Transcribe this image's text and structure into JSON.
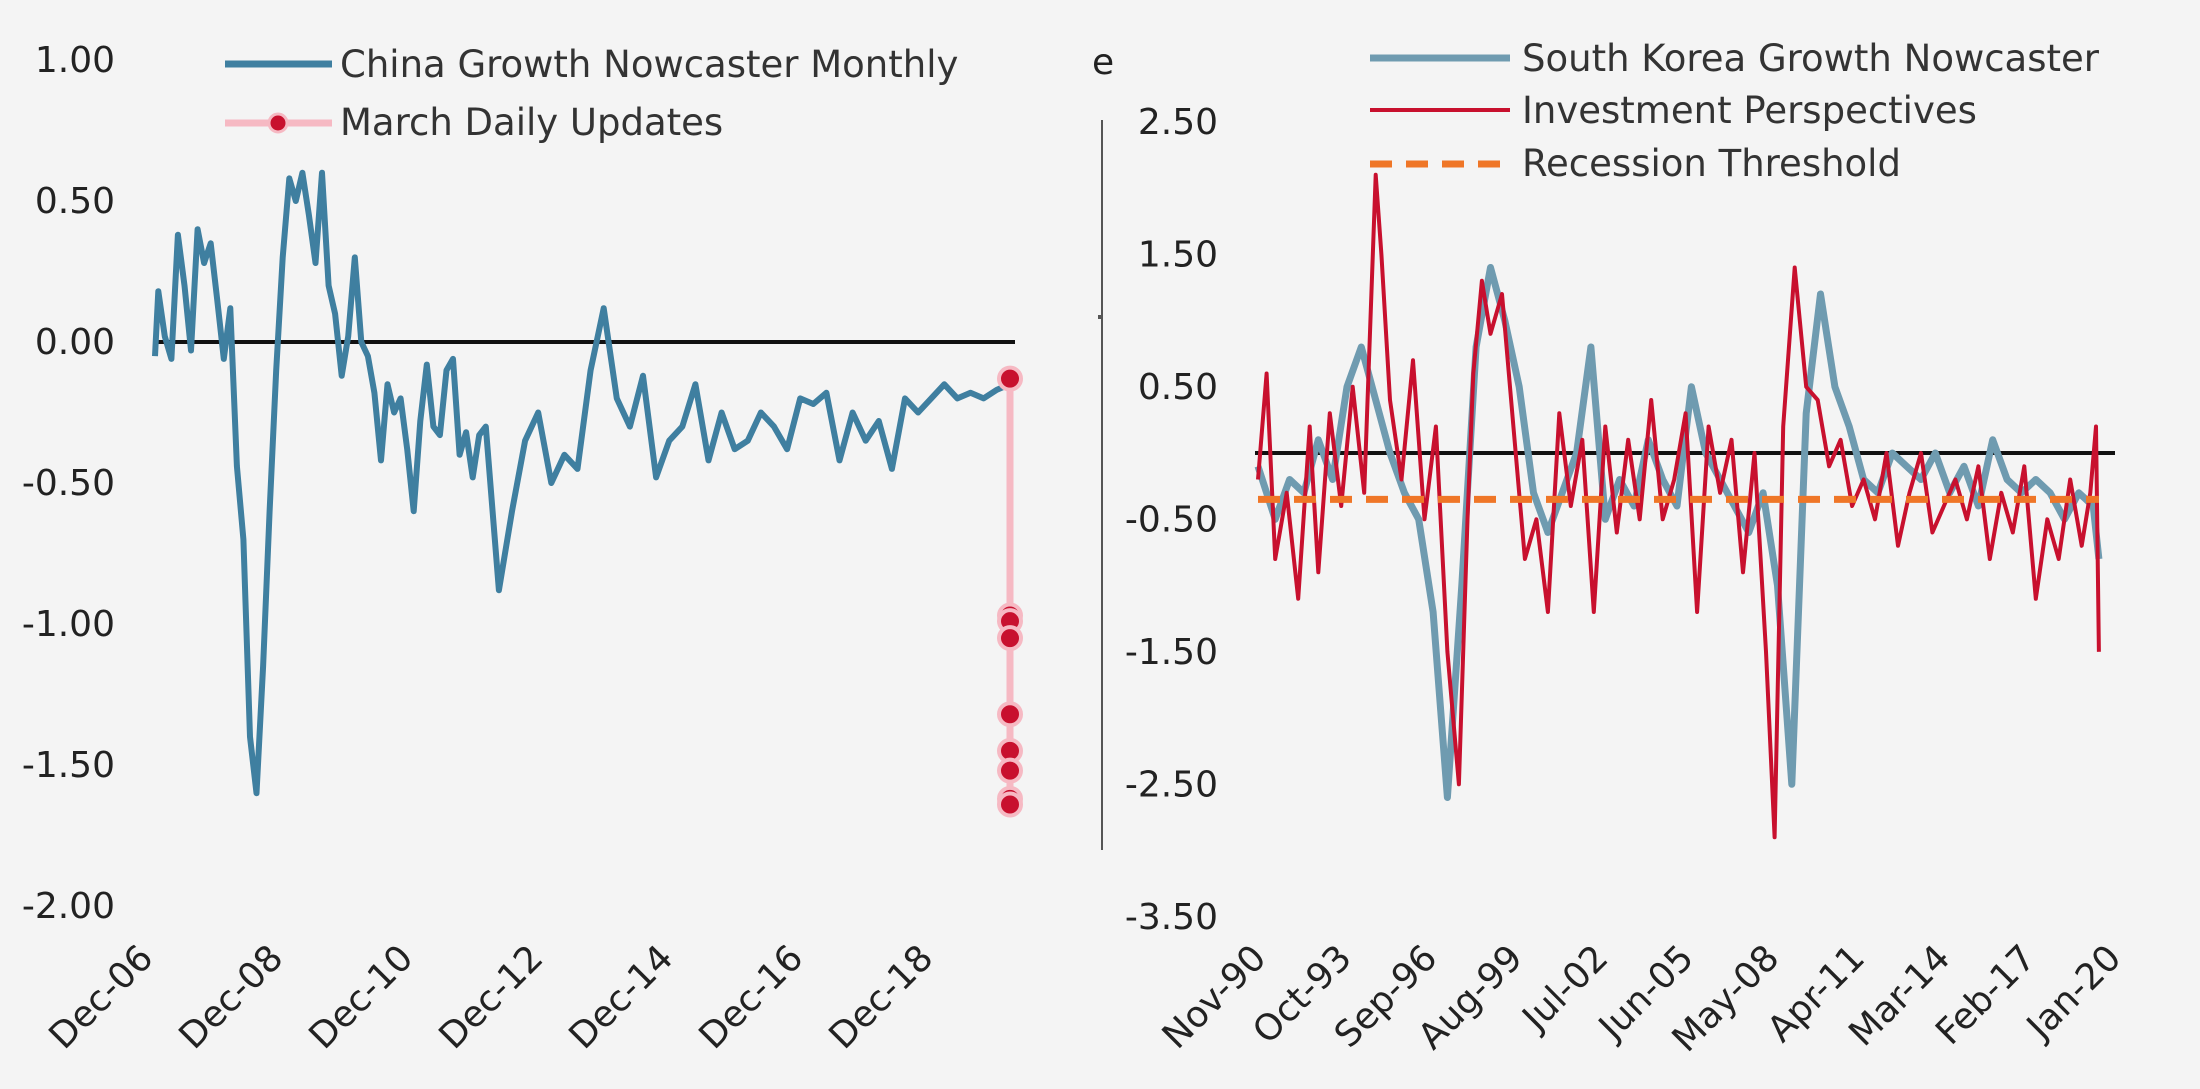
{
  "chart_data": [
    {
      "type": "line",
      "title": "",
      "xlabel": "",
      "ylabel": "",
      "ylim": [
        -2.0,
        1.0
      ],
      "y_ticks": [
        "1.00",
        "0.50",
        "0.00",
        "-0.50",
        "-1.00",
        "-1.50",
        "-2.00"
      ],
      "x_ticks": [
        "Dec-06",
        "Dec-08",
        "Dec-10",
        "Dec-12",
        "Dec-14",
        "Dec-16",
        "Dec-18"
      ],
      "legend_position": "top",
      "reference_line": 0.0,
      "series": [
        {
          "name": "China Growth Nowcaster Monthly",
          "color": "#3f7fa0",
          "x": [
            2006.95,
            2007.0,
            2007.1,
            2007.2,
            2007.3,
            2007.4,
            2007.5,
            2007.6,
            2007.7,
            2007.8,
            2007.9,
            2008.0,
            2008.1,
            2008.2,
            2008.3,
            2008.4,
            2008.5,
            2008.6,
            2008.7,
            2008.8,
            2008.9,
            2009.0,
            2009.1,
            2009.2,
            2009.3,
            2009.4,
            2009.5,
            2009.6,
            2009.7,
            2009.8,
            2009.9,
            2010.0,
            2010.1,
            2010.2,
            2010.3,
            2010.4,
            2010.5,
            2010.6,
            2010.7,
            2010.8,
            2010.9,
            2011.0,
            2011.1,
            2011.2,
            2011.3,
            2011.4,
            2011.5,
            2011.6,
            2011.7,
            2011.8,
            2011.9,
            2012.0,
            2012.2,
            2012.4,
            2012.6,
            2012.8,
            2013.0,
            2013.2,
            2013.4,
            2013.6,
            2013.8,
            2014.0,
            2014.2,
            2014.4,
            2014.6,
            2014.8,
            2015.0,
            2015.2,
            2015.4,
            2015.6,
            2015.8,
            2016.0,
            2016.2,
            2016.4,
            2016.6,
            2016.8,
            2017.0,
            2017.2,
            2017.4,
            2017.6,
            2017.8,
            2018.0,
            2018.2,
            2018.4,
            2018.6,
            2018.8,
            2019.0,
            2019.2,
            2019.4,
            2019.6,
            2019.8,
            2020.0,
            2020.1
          ],
          "values": [
            -0.05,
            0.18,
            0.02,
            -0.06,
            0.38,
            0.2,
            -0.03,
            0.4,
            0.28,
            0.35,
            0.15,
            -0.06,
            0.12,
            -0.44,
            -0.7,
            -1.4,
            -1.6,
            -1.15,
            -0.6,
            -0.1,
            0.3,
            0.58,
            0.5,
            0.6,
            0.45,
            0.28,
            0.6,
            0.2,
            0.1,
            -0.12,
            0.02,
            0.3,
            0.0,
            -0.05,
            -0.18,
            -0.42,
            -0.15,
            -0.25,
            -0.2,
            -0.38,
            -0.6,
            -0.28,
            -0.08,
            -0.3,
            -0.33,
            -0.1,
            -0.06,
            -0.4,
            -0.32,
            -0.48,
            -0.33,
            -0.3,
            -0.88,
            -0.6,
            -0.35,
            -0.25,
            -0.5,
            -0.4,
            -0.45,
            -0.1,
            0.12,
            -0.2,
            -0.3,
            -0.12,
            -0.48,
            -0.35,
            -0.3,
            -0.15,
            -0.42,
            -0.25,
            -0.38,
            -0.35,
            -0.25,
            -0.3,
            -0.38,
            -0.2,
            -0.22,
            -0.18,
            -0.42,
            -0.25,
            -0.35,
            -0.28,
            -0.45,
            -0.2,
            -0.25,
            -0.2,
            -0.15,
            -0.2,
            -0.18,
            -0.2,
            -0.17,
            -0.15,
            -0.13
          ]
        },
        {
          "name": "March Daily Updates",
          "color": "#c8102e",
          "line_color": "#f6b9c3",
          "x": [
            2020.15,
            2020.15,
            2020.15,
            2020.15,
            2020.15,
            2020.15,
            2020.15,
            2020.15,
            2020.15
          ],
          "values": [
            -0.13,
            -0.97,
            -0.99,
            -1.05,
            -1.32,
            -1.45,
            -1.52,
            -1.62,
            -1.64
          ]
        }
      ]
    },
    {
      "type": "line",
      "title": "",
      "xlabel": "",
      "ylabel": "",
      "ylim": [
        -3.5,
        2.5
      ],
      "y_ticks": [
        "2.50",
        "1.50",
        "0.50",
        "-0.50",
        "-1.50",
        "-2.50",
        "-3.50"
      ],
      "x_ticks": [
        "Nov-90",
        "Oct-93",
        "Sep-96",
        "Aug-99",
        "Jul-02",
        "Jun-05",
        "May-08",
        "Apr-11",
        "Mar-14",
        "Feb-17",
        "Jan-20"
      ],
      "legend_position": "top",
      "reference_line": 0.0,
      "series": [
        {
          "name": "South Korea Growth Nowcaster",
          "color": "#6f9bb0",
          "x": [
            1990.9,
            1991.5,
            1992.0,
            1992.5,
            1993.0,
            1993.5,
            1994.0,
            1994.5,
            1995.0,
            1995.5,
            1996.0,
            1996.5,
            1997.0,
            1997.5,
            1998.0,
            1998.5,
            1999.0,
            1999.5,
            2000.0,
            2000.5,
            2001.0,
            2001.5,
            2002.0,
            2002.5,
            2003.0,
            2003.5,
            2004.0,
            2004.5,
            2005.0,
            2005.5,
            2006.0,
            2006.5,
            2007.0,
            2007.5,
            2008.0,
            2008.5,
            2009.0,
            2009.5,
            2010.0,
            2010.5,
            2011.0,
            2011.5,
            2012.0,
            2012.5,
            2013.0,
            2013.5,
            2014.0,
            2014.5,
            2015.0,
            2015.5,
            2016.0,
            2016.5,
            2017.0,
            2017.5,
            2018.0,
            2018.5,
            2019.0,
            2019.5,
            2020.0,
            2020.2
          ],
          "values": [
            -0.1,
            -0.5,
            -0.2,
            -0.3,
            0.1,
            -0.2,
            0.5,
            0.8,
            0.4,
            0.0,
            -0.3,
            -0.5,
            -1.2,
            -2.6,
            -1.0,
            0.8,
            1.4,
            1.0,
            0.5,
            -0.3,
            -0.6,
            -0.3,
            0.0,
            0.8,
            -0.5,
            -0.2,
            -0.4,
            0.1,
            -0.2,
            -0.4,
            0.5,
            0.0,
            -0.2,
            -0.4,
            -0.6,
            -0.3,
            -1.0,
            -2.5,
            0.3,
            1.2,
            0.5,
            0.2,
            -0.2,
            -0.3,
            0.0,
            -0.1,
            -0.2,
            0.0,
            -0.3,
            -0.1,
            -0.4,
            0.1,
            -0.2,
            -0.3,
            -0.2,
            -0.3,
            -0.5,
            -0.3,
            -0.4,
            -0.8
          ]
        },
        {
          "name": "Investment Perspectives",
          "color": "#c8102e",
          "x": [
            1990.9,
            1991.2,
            1991.5,
            1991.9,
            1992.3,
            1992.7,
            1993.0,
            1993.4,
            1993.8,
            1994.2,
            1994.6,
            1995.0,
            1995.2,
            1995.5,
            1995.9,
            1996.3,
            1996.7,
            1997.1,
            1997.5,
            1997.9,
            1998.2,
            1998.4,
            1998.7,
            1999.0,
            1999.4,
            1999.8,
            2000.2,
            2000.6,
            2001.0,
            2001.4,
            2001.8,
            2002.2,
            2002.6,
            2003.0,
            2003.4,
            2003.8,
            2004.2,
            2004.6,
            2005.0,
            2005.4,
            2005.8,
            2006.2,
            2006.6,
            2007.0,
            2007.4,
            2007.8,
            2008.2,
            2008.6,
            2008.9,
            2009.2,
            2009.6,
            2010.0,
            2010.4,
            2010.8,
            2011.2,
            2011.6,
            2012.0,
            2012.4,
            2012.8,
            2013.2,
            2013.6,
            2014.0,
            2014.4,
            2014.8,
            2015.2,
            2015.6,
            2016.0,
            2016.4,
            2016.8,
            2017.2,
            2017.6,
            2018.0,
            2018.4,
            2018.8,
            2019.2,
            2019.6,
            2019.9,
            2020.1,
            2020.2
          ],
          "values": [
            -0.2,
            0.6,
            -0.8,
            -0.3,
            -1.1,
            0.2,
            -0.9,
            0.3,
            -0.4,
            0.5,
            -0.3,
            2.1,
            1.5,
            0.4,
            -0.2,
            0.7,
            -0.5,
            0.2,
            -1.5,
            -2.5,
            -0.5,
            0.6,
            1.3,
            0.9,
            1.2,
            0.2,
            -0.8,
            -0.5,
            -1.2,
            0.3,
            -0.4,
            0.1,
            -1.2,
            0.2,
            -0.6,
            0.1,
            -0.5,
            0.4,
            -0.5,
            -0.2,
            0.3,
            -1.2,
            0.2,
            -0.3,
            0.1,
            -0.9,
            0.0,
            -1.5,
            -2.9,
            0.2,
            1.4,
            0.5,
            0.4,
            -0.1,
            0.1,
            -0.4,
            -0.2,
            -0.5,
            0.0,
            -0.7,
            -0.3,
            0.0,
            -0.6,
            -0.4,
            -0.2,
            -0.5,
            -0.1,
            -0.8,
            -0.3,
            -0.6,
            -0.1,
            -1.1,
            -0.5,
            -0.8,
            -0.2,
            -0.7,
            -0.3,
            0.2,
            -1.5
          ]
        },
        {
          "name": "Recession Threshold",
          "color": "#ef7627",
          "x": [
            1990.9,
            2020.2
          ],
          "values": [
            -0.35,
            -0.35
          ]
        }
      ]
    }
  ],
  "stray_text": "e"
}
